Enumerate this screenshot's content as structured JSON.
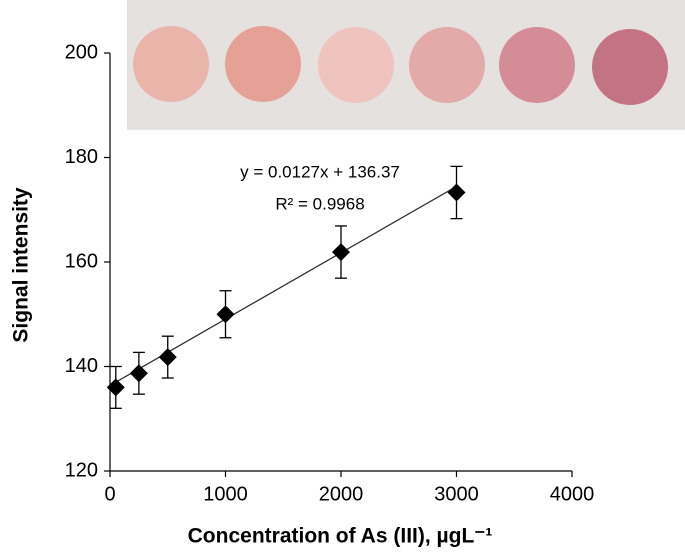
{
  "chart_data": {
    "type": "scatter",
    "xlabel": "Concentration of As (III), µgL⁻¹",
    "ylabel": "Signal intensity",
    "x": [
      50,
      250,
      500,
      1000,
      2000,
      3000
    ],
    "series": [
      {
        "name": "Signal",
        "color": "#000000",
        "values": [
          136,
          138.7,
          141.8,
          150,
          161.9,
          173.3
        ],
        "errors": [
          4,
          4,
          4,
          4.5,
          5,
          5
        ]
      }
    ],
    "trendline": {
      "slope": 0.0127,
      "intercept": 136.37
    },
    "annotations": [
      "y = 0.0127x + 136.37",
      "R² = 0.9968"
    ],
    "xlim": [
      0,
      4000
    ],
    "xticks": [
      0,
      1000,
      2000,
      3000,
      4000
    ],
    "ylim": [
      120,
      200
    ],
    "yticks": [
      120,
      140,
      160,
      180,
      200
    ]
  }
}
